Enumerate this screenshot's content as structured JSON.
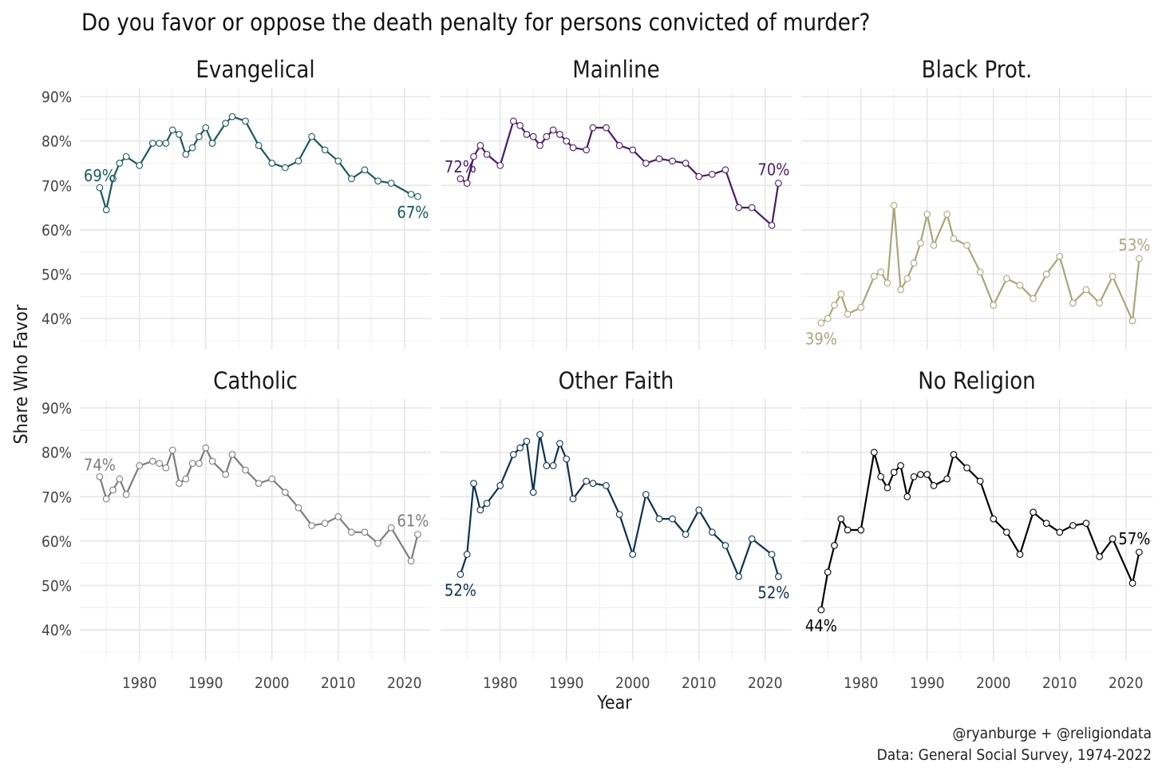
{
  "chart_data": {
    "type": "line",
    "title": "Do you favor or oppose the death penalty for persons convicted of murder?",
    "xlabel": "Year",
    "ylabel": "Share Who Favor",
    "xlim": [
      1971,
      2024
    ],
    "ylim": [
      33,
      92
    ],
    "y_ticks": [
      40,
      50,
      60,
      70,
      80,
      90
    ],
    "y_tick_labels": [
      "40%",
      "50%",
      "60%",
      "70%",
      "80%",
      "90%"
    ],
    "x_ticks": [
      1980,
      1990,
      2000,
      2010,
      2020
    ],
    "x_tick_labels": [
      "1980",
      "1990",
      "2000",
      "2010",
      "2020"
    ],
    "caption": [
      "@ryanburge + @religiondata",
      "Data: General Social Survey, 1974-2022"
    ],
    "series": [
      {
        "name": "Evangelical",
        "color": "#1b5a5e",
        "x": [
          1974,
          1975,
          1976,
          1977,
          1978,
          1980,
          1982,
          1983,
          1984,
          1985,
          1986,
          1987,
          1988,
          1989,
          1990,
          1991,
          1993,
          1994,
          1996,
          1998,
          2000,
          2002,
          2004,
          2006,
          2008,
          2010,
          2012,
          2014,
          2016,
          2018,
          2021,
          2022
        ],
        "values": [
          69.5,
          64.5,
          71.5,
          75,
          76.5,
          74.5,
          79.5,
          79.5,
          79.5,
          82.5,
          81.5,
          77,
          78.5,
          81,
          83,
          79.5,
          84,
          85.5,
          84.5,
          79,
          75,
          74,
          75.5,
          81,
          78,
          75.5,
          71.5,
          73.5,
          71,
          70.5,
          68,
          67.5
        ],
        "start_label": "69%",
        "end_label": "67%"
      },
      {
        "name": "Mainline",
        "color": "#4a1a6b",
        "x": [
          1974,
          1975,
          1976,
          1977,
          1978,
          1980,
          1982,
          1983,
          1984,
          1985,
          1986,
          1987,
          1988,
          1989,
          1990,
          1991,
          1993,
          1994,
          1996,
          1998,
          2000,
          2002,
          2004,
          2006,
          2008,
          2010,
          2012,
          2014,
          2016,
          2018,
          2021,
          2022
        ],
        "values": [
          71.5,
          70.5,
          76.5,
          79,
          77,
          74.5,
          84.5,
          83.5,
          81.5,
          81,
          79,
          81,
          82.5,
          81.5,
          80,
          78.5,
          78,
          83,
          83,
          79,
          78,
          75,
          76,
          75.5,
          75,
          72,
          72.5,
          73.5,
          65,
          65,
          61,
          70.5
        ],
        "start_label": "72%",
        "end_label": "70%"
      },
      {
        "name": "Black Prot.",
        "color": "#a8a77a",
        "x": [
          1974,
          1975,
          1976,
          1977,
          1978,
          1980,
          1982,
          1983,
          1984,
          1985,
          1986,
          1987,
          1988,
          1989,
          1990,
          1991,
          1993,
          1994,
          1996,
          1998,
          2000,
          2002,
          2004,
          2006,
          2008,
          2010,
          2012,
          2014,
          2016,
          2018,
          2021,
          2022
        ],
        "values": [
          39,
          40,
          43,
          45.5,
          41,
          42.5,
          49.5,
          50.5,
          48,
          65.5,
          46.5,
          49,
          52.5,
          57,
          63.5,
          56.5,
          63.5,
          58,
          56.5,
          50.5,
          43,
          49,
          47.5,
          44.5,
          50,
          54,
          43.5,
          46.5,
          43.5,
          49.5,
          39.5,
          53.5
        ],
        "start_label": "39%",
        "end_label": "53%"
      },
      {
        "name": "Catholic",
        "color": "#7a7f7d",
        "x": [
          1974,
          1975,
          1976,
          1977,
          1978,
          1980,
          1982,
          1983,
          1984,
          1985,
          1986,
          1987,
          1988,
          1989,
          1990,
          1991,
          1993,
          1994,
          1996,
          1998,
          2000,
          2002,
          2004,
          2006,
          2008,
          2010,
          2012,
          2014,
          2016,
          2018,
          2021,
          2022
        ],
        "values": [
          74.5,
          69.5,
          71.5,
          74,
          70.5,
          77,
          78,
          77.5,
          76.5,
          80.5,
          73,
          74,
          77.5,
          77.5,
          81,
          78,
          75,
          79.5,
          76,
          73,
          74,
          71,
          67.5,
          63.5,
          64,
          65.5,
          62,
          62,
          59.5,
          63,
          55.5,
          61.5
        ],
        "start_label": "74%",
        "end_label": "61%"
      },
      {
        "name": "Other Faith",
        "color": "#0d3253",
        "x": [
          1974,
          1975,
          1976,
          1977,
          1978,
          1980,
          1982,
          1983,
          1984,
          1985,
          1986,
          1987,
          1988,
          1989,
          1990,
          1991,
          1993,
          1994,
          1996,
          1998,
          2000,
          2002,
          2004,
          2006,
          2008,
          2010,
          2012,
          2014,
          2016,
          2018,
          2021,
          2022
        ],
        "values": [
          52.5,
          57,
          73,
          67,
          68.5,
          72.5,
          79.5,
          81,
          82.5,
          71,
          84,
          77,
          77,
          82,
          78.5,
          69.5,
          73.5,
          73,
          72.5,
          66,
          57,
          70.5,
          65,
          65,
          61.5,
          67,
          62,
          59,
          52,
          60.5,
          57,
          52
        ],
        "start_label": "52%",
        "end_label": "52%"
      },
      {
        "name": "No Religion",
        "color": "#000000",
        "x": [
          1974,
          1975,
          1976,
          1977,
          1978,
          1980,
          1982,
          1983,
          1984,
          1985,
          1986,
          1987,
          1988,
          1989,
          1990,
          1991,
          1993,
          1994,
          1996,
          1998,
          2000,
          2002,
          2004,
          2006,
          2008,
          2010,
          2012,
          2014,
          2016,
          2018,
          2021,
          2022
        ],
        "values": [
          44.5,
          53,
          59,
          65,
          62.5,
          62.5,
          80,
          74.5,
          72,
          75.5,
          77,
          70,
          74.5,
          75,
          75,
          72.5,
          74,
          79.5,
          76.5,
          73.5,
          65,
          62,
          57,
          66.5,
          64,
          62,
          63.5,
          64,
          56.5,
          60.5,
          50.5,
          57.5
        ],
        "start_label": "44%",
        "end_label": "57%"
      }
    ]
  }
}
